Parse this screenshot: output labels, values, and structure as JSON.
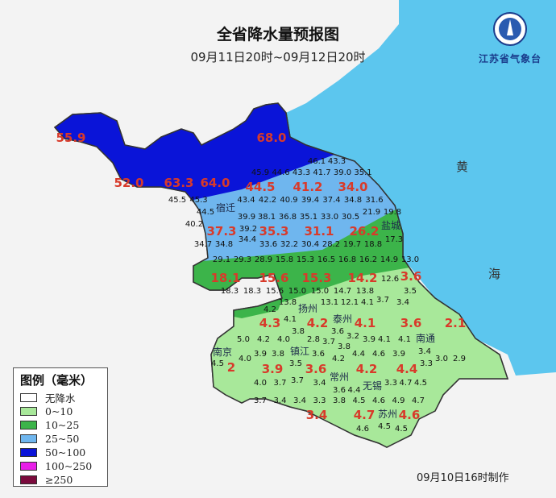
{
  "title": "全省降水量预报图",
  "subtitle": "09月11日20时~09月12日20时",
  "logo": {
    "name": "江苏省气象台",
    "emblem_text": "江苏省气象台"
  },
  "footer": "09月10日16时制作",
  "sea_labels": [
    "黄",
    "海"
  ],
  "colors": {
    "sea": "#5cc6ee",
    "no_rain": "#ffffff",
    "r0_10": "#a8e89a",
    "r10_25": "#3cb44a",
    "r25_50": "#6fb6ee",
    "r50_100": "#0a14d8",
    "r100_250": "#e81ee8",
    "r250": "#7a0a3c",
    "neighbor_land": "#f3f3f3",
    "peak_label": "#d83a2a"
  },
  "legend": {
    "title": "图例（毫米）",
    "items": [
      {
        "label": "无降水",
        "color": "#ffffff"
      },
      {
        "label": "0~10",
        "color": "#a8e89a"
      },
      {
        "label": "10~25",
        "color": "#3cb44a"
      },
      {
        "label": "25~50",
        "color": "#6fb6ee"
      },
      {
        "label": "50~100",
        "color": "#0a14d8"
      },
      {
        "label": "100~250",
        "color": "#e81ee8"
      },
      {
        "label": "≥250",
        "color": "#7a0a3c"
      }
    ]
  },
  "cities": [
    "宿迁",
    "盐城",
    "扬州",
    "泰州",
    "南京",
    "镇江",
    "常州",
    "无锡",
    "苏州",
    "南通"
  ],
  "peak_values": [
    "55.9",
    "68.0",
    "52.0",
    "63.3",
    "64.0",
    "44.5",
    "41.2",
    "34.0",
    "37.3",
    "35.3",
    "31.1",
    "26.2",
    "18.1",
    "15.6",
    "15.3",
    "14.2",
    "3.6",
    "4.3",
    "4.2",
    "4.1",
    "3.6",
    "2.1",
    "3.9",
    "3.6",
    "4.2",
    "4.4",
    "3.4",
    "4.7",
    "4.6",
    "2"
  ],
  "station_rows": [
    [
      "46.1",
      "43.3"
    ],
    [
      "45.9",
      "44.6",
      "43.3",
      "41.7",
      "39.0",
      "35.1"
    ],
    [
      "45.5",
      "45.3",
      "44.5",
      "43.4",
      "42.2",
      "40.9",
      "39.4",
      "37.4",
      "34.8",
      "31.6"
    ],
    [
      "40.2",
      "39.9",
      "39.2",
      "38.1",
      "36.8",
      "35.1",
      "33.0",
      "30.5",
      "21.9",
      "19.8"
    ],
    [
      "34.7",
      "34.8",
      "34.4",
      "33.6",
      "32.2",
      "30.4",
      "28.2",
      "19.7",
      "18.8",
      "17.3"
    ],
    [
      "29.1",
      "29.3",
      "28.9",
      "15.8",
      "15.3",
      "16.5",
      "16.8",
      "16.2",
      "14.9",
      "13.0"
    ],
    [
      "18.3",
      "18.3",
      "15.6",
      "15.0",
      "15.0",
      "14.7",
      "13.8",
      "12.6",
      "3.5"
    ],
    [
      "13.8",
      "13.1",
      "12.1",
      "4.1",
      "3.7",
      "3.4"
    ],
    [
      "4.2",
      "4.1",
      "3.8",
      "3.6",
      "3.2"
    ],
    [
      "5.0",
      "4.2",
      "4.0",
      "2.8",
      "3.7",
      "3.8",
      "3.9",
      "4.1",
      "4.1",
      "3.4"
    ],
    [
      "4.5",
      "4.0",
      "3.9",
      "3.8",
      "3.5",
      "3.6",
      "4.2",
      "4.4",
      "4.6",
      "3.9",
      "3.3",
      "3.0",
      "2.9"
    ],
    [
      "4.0",
      "3.7",
      "3.7",
      "3.4",
      "3.6",
      "4.4",
      "3.3",
      "4.7",
      "4.5"
    ],
    [
      "3.7",
      "3.4",
      "3.4",
      "3.3",
      "3.8",
      "4.5",
      "4.6",
      "4.9",
      "4.7"
    ],
    [
      "4.6",
      "4.5",
      "4.5"
    ]
  ]
}
